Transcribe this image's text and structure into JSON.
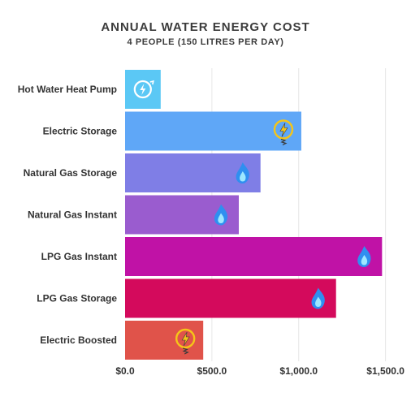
{
  "chart_data": {
    "type": "bar",
    "orientation": "horizontal",
    "title": "ANNUAL WATER ENERGY COST",
    "subtitle": "4 PEOPLE (150 LITRES PER DAY)",
    "categories": [
      "Hot Water Heat Pump",
      "Electric Storage",
      "Natural Gas Storage",
      "Natural Gas Instant",
      "LPG Gas Instant",
      "LPG Gas Storage",
      "Electric Boosted"
    ],
    "values": [
      205,
      1015,
      780,
      655,
      1480,
      1215,
      450
    ],
    "bar_colors": [
      "#5bc8f5",
      "#5fa7f7",
      "#7f7ee6",
      "#9a5ccf",
      "#c012a6",
      "#d40a5c",
      "#e0534a"
    ],
    "bar_icons": [
      "heat-pump-icon",
      "lightning-icon",
      "flame-icon",
      "flame-icon",
      "flame-icon",
      "flame-icon",
      "lightning-icon"
    ],
    "xlim": [
      0,
      1600
    ],
    "xticks": [
      0,
      500,
      1000,
      1500
    ],
    "xtick_labels": [
      "$0.0",
      "$500.0",
      "$1,000.0",
      "$1,500.0"
    ],
    "grid": true,
    "legend": "none"
  }
}
